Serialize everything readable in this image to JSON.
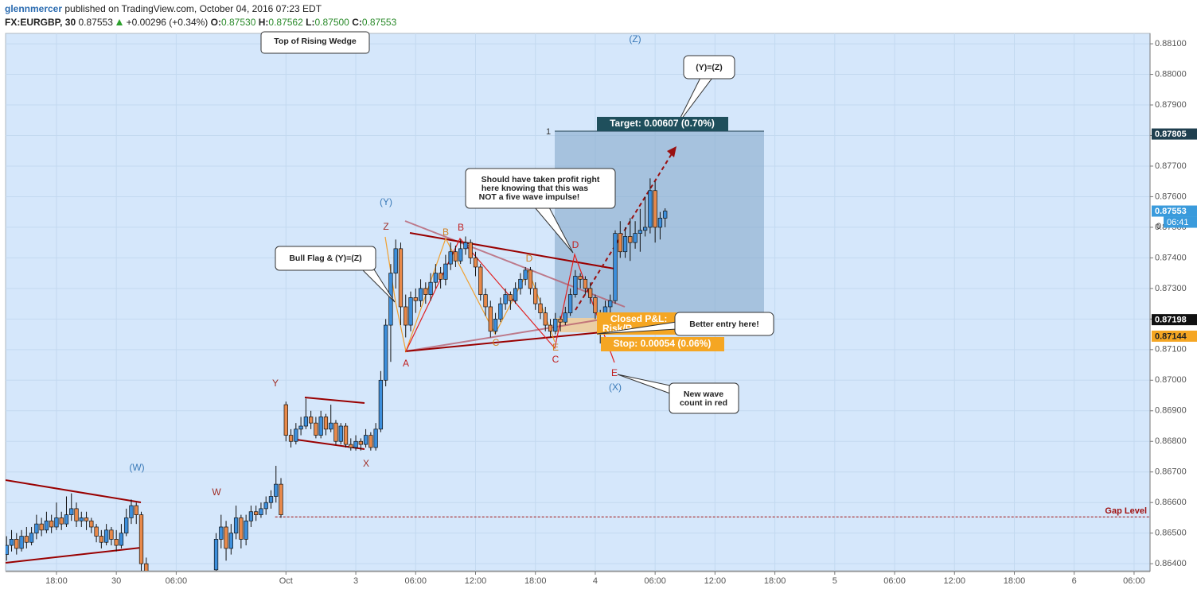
{
  "header": {
    "author": "glennmercer",
    "published": "published on TradingView.com, October 04, 2016 07:23 EDT",
    "symbol": "FX:EURGBP, 30",
    "last": "0.87553",
    "change": "+0.00296 (+0.34%)",
    "o_label": "O:",
    "o": "0.87530",
    "h_label": "H:",
    "h": "0.87562",
    "l_label": "L:",
    "l": "0.87500",
    "c_label": "C:",
    "c": "0.87553"
  },
  "chart_data": {
    "type": "candlestick",
    "ylim": [
      0.86377,
      0.88134
    ],
    "yticks": [
      {
        "value": 0.864,
        "label": "0.86400"
      },
      {
        "value": 0.865,
        "label": "0.86500"
      },
      {
        "value": 0.866,
        "label": "0.86600"
      },
      {
        "value": 0.867,
        "label": "0.86700"
      },
      {
        "value": 0.868,
        "label": "0.86800"
      },
      {
        "value": 0.869,
        "label": "0.86900"
      },
      {
        "value": 0.87,
        "label": "0.87000"
      },
      {
        "value": 0.871,
        "label": "0.87100"
      },
      {
        "value": 0.872,
        "label": "0.87200"
      },
      {
        "value": 0.873,
        "label": "0.87300"
      },
      {
        "value": 0.874,
        "label": "0.87400"
      },
      {
        "value": 0.875,
        "label": "0.87500"
      },
      {
        "value": 0.876,
        "label": "0.87600"
      },
      {
        "value": 0.877,
        "label": "0.87700"
      },
      {
        "value": 0.878,
        "label": "0.87800"
      },
      {
        "value": 0.879,
        "label": "0.87900"
      },
      {
        "value": 0.88,
        "label": "0.88000"
      },
      {
        "value": 0.881,
        "label": "0.88100"
      }
    ],
    "xlim": [
      -22.2,
      207.2
    ],
    "xticks": [
      {
        "value": -12,
        "label": "18:00"
      },
      {
        "value": 0,
        "label": "30"
      },
      {
        "value": 12,
        "label": "06:00"
      },
      {
        "value": 34,
        "label": "Oct"
      },
      {
        "value": 48,
        "label": "3"
      },
      {
        "value": 60,
        "label": "06:00"
      },
      {
        "value": 72,
        "label": "12:00"
      },
      {
        "value": 84,
        "label": "18:00"
      },
      {
        "value": 96,
        "label": "4"
      },
      {
        "value": 108,
        "label": "06:00"
      },
      {
        "value": 120,
        "label": "12:00"
      },
      {
        "value": 132,
        "label": "18:00"
      },
      {
        "value": 144,
        "label": "5"
      },
      {
        "value": 156,
        "label": "06:00"
      },
      {
        "value": 168,
        "label": "12:00"
      },
      {
        "value": 180,
        "label": "18:00"
      },
      {
        "value": 192,
        "label": "6"
      },
      {
        "value": 204,
        "label": "06:00"
      }
    ],
    "grid": true,
    "up_color": "#3d8fdc",
    "down_color": "#e8894a",
    "background": "#d5e7fb",
    "candles": [
      {
        "x": -22,
        "o": 0.8643,
        "h": 0.8649,
        "l": 0.8641,
        "c": 0.8646
      },
      {
        "x": -21,
        "o": 0.8646,
        "h": 0.8651,
        "l": 0.8644,
        "c": 0.8648
      },
      {
        "x": -20,
        "o": 0.8648,
        "h": 0.865,
        "l": 0.8643,
        "c": 0.8645
      },
      {
        "x": -19,
        "o": 0.8645,
        "h": 0.8651,
        "l": 0.8644,
        "c": 0.8649
      },
      {
        "x": -18,
        "o": 0.8649,
        "h": 0.8652,
        "l": 0.8645,
        "c": 0.8647
      },
      {
        "x": -17,
        "o": 0.8647,
        "h": 0.8652,
        "l": 0.8646,
        "c": 0.865
      },
      {
        "x": -16,
        "o": 0.865,
        "h": 0.8656,
        "l": 0.8648,
        "c": 0.8653
      },
      {
        "x": -15,
        "o": 0.8653,
        "h": 0.8655,
        "l": 0.8649,
        "c": 0.8651
      },
      {
        "x": -14,
        "o": 0.8651,
        "h": 0.8657,
        "l": 0.865,
        "c": 0.8654
      },
      {
        "x": -13,
        "o": 0.8654,
        "h": 0.8656,
        "l": 0.865,
        "c": 0.8652
      },
      {
        "x": -12,
        "o": 0.8652,
        "h": 0.866,
        "l": 0.8651,
        "c": 0.8655
      },
      {
        "x": -11,
        "o": 0.8655,
        "h": 0.8657,
        "l": 0.8651,
        "c": 0.8653
      },
      {
        "x": -10,
        "o": 0.8653,
        "h": 0.8662,
        "l": 0.8652,
        "c": 0.8656
      },
      {
        "x": -9,
        "o": 0.8656,
        "h": 0.8663,
        "l": 0.8654,
        "c": 0.8658
      },
      {
        "x": -8,
        "o": 0.8658,
        "h": 0.866,
        "l": 0.8652,
        "c": 0.8654
      },
      {
        "x": -7,
        "o": 0.8654,
        "h": 0.8657,
        "l": 0.8652,
        "c": 0.8655
      },
      {
        "x": -6,
        "o": 0.8655,
        "h": 0.8657,
        "l": 0.8651,
        "c": 0.8654
      },
      {
        "x": -5,
        "o": 0.8654,
        "h": 0.8655,
        "l": 0.865,
        "c": 0.8652
      },
      {
        "x": -4,
        "o": 0.8652,
        "h": 0.8653,
        "l": 0.8647,
        "c": 0.8649
      },
      {
        "x": -3,
        "o": 0.8649,
        "h": 0.8651,
        "l": 0.8645,
        "c": 0.8647
      },
      {
        "x": -2,
        "o": 0.8647,
        "h": 0.8653,
        "l": 0.8646,
        "c": 0.8651
      },
      {
        "x": -1,
        "o": 0.8651,
        "h": 0.8652,
        "l": 0.8646,
        "c": 0.8648
      },
      {
        "x": 0,
        "o": 0.8648,
        "h": 0.8651,
        "l": 0.8644,
        "c": 0.8646
      },
      {
        "x": 1,
        "o": 0.8646,
        "h": 0.8653,
        "l": 0.8645,
        "c": 0.865
      },
      {
        "x": 2,
        "o": 0.865,
        "h": 0.8658,
        "l": 0.8649,
        "c": 0.8655
      },
      {
        "x": 3,
        "o": 0.8655,
        "h": 0.8661,
        "l": 0.8653,
        "c": 0.8659
      },
      {
        "x": 4,
        "o": 0.8659,
        "h": 0.866,
        "l": 0.8653,
        "c": 0.8656
      },
      {
        "x": 5,
        "o": 0.8656,
        "h": 0.8657,
        "l": 0.8636,
        "c": 0.864
      },
      {
        "x": 6,
        "o": 0.864,
        "h": 0.8642,
        "l": 0.863,
        "c": 0.8633
      },
      {
        "x": 20,
        "o": 0.8638,
        "h": 0.865,
        "l": 0.8636,
        "c": 0.8648
      },
      {
        "x": 21,
        "o": 0.8648,
        "h": 0.8656,
        "l": 0.8645,
        "c": 0.8652
      },
      {
        "x": 22,
        "o": 0.8652,
        "h": 0.8654,
        "l": 0.8641,
        "c": 0.8645
      },
      {
        "x": 23,
        "o": 0.8645,
        "h": 0.8653,
        "l": 0.8643,
        "c": 0.865
      },
      {
        "x": 24,
        "o": 0.865,
        "h": 0.8659,
        "l": 0.8648,
        "c": 0.8655
      },
      {
        "x": 25,
        "o": 0.8655,
        "h": 0.8656,
        "l": 0.8645,
        "c": 0.8648
      },
      {
        "x": 26,
        "o": 0.8648,
        "h": 0.8656,
        "l": 0.8646,
        "c": 0.8654
      },
      {
        "x": 27,
        "o": 0.8654,
        "h": 0.8659,
        "l": 0.8652,
        "c": 0.8657
      },
      {
        "x": 28,
        "o": 0.8657,
        "h": 0.8659,
        "l": 0.8654,
        "c": 0.8656
      },
      {
        "x": 29,
        "o": 0.8656,
        "h": 0.866,
        "l": 0.8655,
        "c": 0.8658
      },
      {
        "x": 30,
        "o": 0.8658,
        "h": 0.8662,
        "l": 0.8656,
        "c": 0.866
      },
      {
        "x": 31,
        "o": 0.866,
        "h": 0.8664,
        "l": 0.8658,
        "c": 0.8662
      },
      {
        "x": 32,
        "o": 0.8662,
        "h": 0.8672,
        "l": 0.866,
        "c": 0.8666
      },
      {
        "x": 33,
        "o": 0.8666,
        "h": 0.8668,
        "l": 0.8655,
        "c": 0.8656
      },
      {
        "x": 34,
        "o": 0.8692,
        "h": 0.8693,
        "l": 0.868,
        "c": 0.8682
      },
      {
        "x": 35,
        "o": 0.8682,
        "h": 0.8684,
        "l": 0.8678,
        "c": 0.868
      },
      {
        "x": 36,
        "o": 0.868,
        "h": 0.8686,
        "l": 0.8679,
        "c": 0.8684
      },
      {
        "x": 37,
        "o": 0.8684,
        "h": 0.8688,
        "l": 0.8682,
        "c": 0.8685
      },
      {
        "x": 38,
        "o": 0.8685,
        "h": 0.8694,
        "l": 0.8684,
        "c": 0.8688
      },
      {
        "x": 39,
        "o": 0.8688,
        "h": 0.869,
        "l": 0.8684,
        "c": 0.8686
      },
      {
        "x": 40,
        "o": 0.8686,
        "h": 0.8688,
        "l": 0.8681,
        "c": 0.8682
      },
      {
        "x": 41,
        "o": 0.8682,
        "h": 0.869,
        "l": 0.8681,
        "c": 0.8688
      },
      {
        "x": 42,
        "o": 0.8688,
        "h": 0.8689,
        "l": 0.8682,
        "c": 0.8684
      },
      {
        "x": 43,
        "o": 0.8684,
        "h": 0.8692,
        "l": 0.8683,
        "c": 0.8686
      },
      {
        "x": 44,
        "o": 0.8686,
        "h": 0.8687,
        "l": 0.8679,
        "c": 0.868
      },
      {
        "x": 45,
        "o": 0.868,
        "h": 0.8686,
        "l": 0.8679,
        "c": 0.8685
      },
      {
        "x": 46,
        "o": 0.8685,
        "h": 0.8686,
        "l": 0.8678,
        "c": 0.8679
      },
      {
        "x": 47,
        "o": 0.8679,
        "h": 0.8681,
        "l": 0.8677,
        "c": 0.8678
      },
      {
        "x": 48,
        "o": 0.8678,
        "h": 0.8682,
        "l": 0.8677,
        "c": 0.868
      },
      {
        "x": 49,
        "o": 0.868,
        "h": 0.8681,
        "l": 0.8677,
        "c": 0.8679
      },
      {
        "x": 50,
        "o": 0.8679,
        "h": 0.8684,
        "l": 0.8678,
        "c": 0.8682
      },
      {
        "x": 51,
        "o": 0.8682,
        "h": 0.8683,
        "l": 0.8677,
        "c": 0.8678
      },
      {
        "x": 52,
        "o": 0.8678,
        "h": 0.8686,
        "l": 0.8677,
        "c": 0.8684
      },
      {
        "x": 53,
        "o": 0.8684,
        "h": 0.8703,
        "l": 0.8683,
        "c": 0.87
      },
      {
        "x": 54,
        "o": 0.87,
        "h": 0.872,
        "l": 0.8698,
        "c": 0.8718
      },
      {
        "x": 55,
        "o": 0.8718,
        "h": 0.8738,
        "l": 0.8706,
        "c": 0.8735
      },
      {
        "x": 56,
        "o": 0.8735,
        "h": 0.8746,
        "l": 0.873,
        "c": 0.8743
      },
      {
        "x": 57,
        "o": 0.8743,
        "h": 0.8745,
        "l": 0.8718,
        "c": 0.8724
      },
      {
        "x": 58,
        "o": 0.8724,
        "h": 0.8728,
        "l": 0.8714,
        "c": 0.8718
      },
      {
        "x": 59,
        "o": 0.8718,
        "h": 0.8729,
        "l": 0.8716,
        "c": 0.8727
      },
      {
        "x": 60,
        "o": 0.8727,
        "h": 0.873,
        "l": 0.8722,
        "c": 0.8726
      },
      {
        "x": 61,
        "o": 0.8726,
        "h": 0.8733,
        "l": 0.8724,
        "c": 0.873
      },
      {
        "x": 62,
        "o": 0.873,
        "h": 0.8732,
        "l": 0.8725,
        "c": 0.8728
      },
      {
        "x": 63,
        "o": 0.8728,
        "h": 0.8735,
        "l": 0.8726,
        "c": 0.8732
      },
      {
        "x": 64,
        "o": 0.8732,
        "h": 0.8738,
        "l": 0.873,
        "c": 0.8735
      },
      {
        "x": 65,
        "o": 0.8735,
        "h": 0.8737,
        "l": 0.873,
        "c": 0.8733
      },
      {
        "x": 66,
        "o": 0.8733,
        "h": 0.8741,
        "l": 0.8731,
        "c": 0.8738
      },
      {
        "x": 67,
        "o": 0.8738,
        "h": 0.8745,
        "l": 0.8736,
        "c": 0.8742
      },
      {
        "x": 68,
        "o": 0.8742,
        "h": 0.8744,
        "l": 0.8737,
        "c": 0.8739
      },
      {
        "x": 69,
        "o": 0.8739,
        "h": 0.8746,
        "l": 0.8738,
        "c": 0.8743
      },
      {
        "x": 70,
        "o": 0.8743,
        "h": 0.8747,
        "l": 0.8741,
        "c": 0.8745
      },
      {
        "x": 71,
        "o": 0.8745,
        "h": 0.8746,
        "l": 0.8738,
        "c": 0.874
      },
      {
        "x": 72,
        "o": 0.874,
        "h": 0.8742,
        "l": 0.8734,
        "c": 0.8737
      },
      {
        "x": 73,
        "o": 0.8737,
        "h": 0.8738,
        "l": 0.8726,
        "c": 0.8728
      },
      {
        "x": 74,
        "o": 0.8728,
        "h": 0.873,
        "l": 0.8721,
        "c": 0.8724
      },
      {
        "x": 75,
        "o": 0.8724,
        "h": 0.8726,
        "l": 0.8714,
        "c": 0.8716
      },
      {
        "x": 76,
        "o": 0.8716,
        "h": 0.8722,
        "l": 0.8715,
        "c": 0.872
      },
      {
        "x": 77,
        "o": 0.872,
        "h": 0.8727,
        "l": 0.8719,
        "c": 0.8725
      },
      {
        "x": 78,
        "o": 0.8725,
        "h": 0.873,
        "l": 0.8723,
        "c": 0.8728
      },
      {
        "x": 79,
        "o": 0.8728,
        "h": 0.8729,
        "l": 0.8723,
        "c": 0.8726
      },
      {
        "x": 80,
        "o": 0.8726,
        "h": 0.8732,
        "l": 0.8725,
        "c": 0.873
      },
      {
        "x": 81,
        "o": 0.873,
        "h": 0.8735,
        "l": 0.8728,
        "c": 0.8733
      },
      {
        "x": 82,
        "o": 0.8733,
        "h": 0.8737,
        "l": 0.8731,
        "c": 0.8736
      },
      {
        "x": 83,
        "o": 0.8736,
        "h": 0.8737,
        "l": 0.8728,
        "c": 0.873
      },
      {
        "x": 84,
        "o": 0.873,
        "h": 0.8732,
        "l": 0.8723,
        "c": 0.8725
      },
      {
        "x": 85,
        "o": 0.8725,
        "h": 0.8727,
        "l": 0.872,
        "c": 0.8722
      },
      {
        "x": 86,
        "o": 0.8722,
        "h": 0.8724,
        "l": 0.8716,
        "c": 0.8718
      },
      {
        "x": 87,
        "o": 0.8718,
        "h": 0.872,
        "l": 0.8714,
        "c": 0.8716
      },
      {
        "x": 88,
        "o": 0.8716,
        "h": 0.8722,
        "l": 0.8715,
        "c": 0.872
      },
      {
        "x": 89,
        "o": 0.872,
        "h": 0.8721,
        "l": 0.8716,
        "c": 0.8719
      },
      {
        "x": 90,
        "o": 0.8719,
        "h": 0.8724,
        "l": 0.8718,
        "c": 0.8722
      },
      {
        "x": 91,
        "o": 0.8722,
        "h": 0.873,
        "l": 0.8721,
        "c": 0.8728
      },
      {
        "x": 92,
        "o": 0.8728,
        "h": 0.8736,
        "l": 0.8727,
        "c": 0.8734
      },
      {
        "x": 93,
        "o": 0.8734,
        "h": 0.8735,
        "l": 0.873,
        "c": 0.8733
      },
      {
        "x": 94,
        "o": 0.8733,
        "h": 0.8734,
        "l": 0.8728,
        "c": 0.873
      },
      {
        "x": 95,
        "o": 0.873,
        "h": 0.8732,
        "l": 0.8725,
        "c": 0.8727
      },
      {
        "x": 96,
        "o": 0.8727,
        "h": 0.8728,
        "l": 0.872,
        "c": 0.8722
      },
      {
        "x": 97,
        "o": 0.8722,
        "h": 0.8723,
        "l": 0.8712,
        "c": 0.8718
      },
      {
        "x": 98,
        "o": 0.8718,
        "h": 0.8726,
        "l": 0.8717,
        "c": 0.8724
      },
      {
        "x": 99,
        "o": 0.8724,
        "h": 0.8728,
        "l": 0.8722,
        "c": 0.8726
      },
      {
        "x": 100,
        "o": 0.8726,
        "h": 0.8749,
        "l": 0.8725,
        "c": 0.8748
      },
      {
        "x": 101,
        "o": 0.8748,
        "h": 0.8752,
        "l": 0.874,
        "c": 0.8742
      },
      {
        "x": 102,
        "o": 0.8742,
        "h": 0.875,
        "l": 0.874,
        "c": 0.8747
      },
      {
        "x": 103,
        "o": 0.8747,
        "h": 0.8753,
        "l": 0.8739,
        "c": 0.8745
      },
      {
        "x": 104,
        "o": 0.8745,
        "h": 0.8752,
        "l": 0.8743,
        "c": 0.8748
      },
      {
        "x": 105,
        "o": 0.8748,
        "h": 0.8756,
        "l": 0.8742,
        "c": 0.8749
      },
      {
        "x": 106,
        "o": 0.8749,
        "h": 0.876,
        "l": 0.8747,
        "c": 0.875
      },
      {
        "x": 107,
        "o": 0.875,
        "h": 0.8766,
        "l": 0.8748,
        "c": 0.8762
      },
      {
        "x": 108,
        "o": 0.8762,
        "h": 0.8765,
        "l": 0.8745,
        "c": 0.875
      },
      {
        "x": 109,
        "o": 0.875,
        "h": 0.8755,
        "l": 0.8746,
        "c": 0.8753
      },
      {
        "x": 110,
        "o": 0.8753,
        "h": 0.87562,
        "l": 0.875,
        "c": 0.87553
      }
    ],
    "price_tags": [
      {
        "value": 0.87805,
        "color": "#1f3f4f",
        "text_color": "#ffffff"
      },
      {
        "value": 0.87553,
        "color": "#3a9bdc",
        "text_color": "#ffffff"
      },
      {
        "value": 0.87198,
        "color": "#111111",
        "text_color": "#ffffff"
      },
      {
        "value": 0.87144,
        "color": "#f5a623",
        "text_color": "#222222"
      }
    ],
    "countdown": "06:41",
    "gap_level": {
      "label": "Gap Level",
      "value": 0.86553
    },
    "annotations": {
      "top_wedge": "Top of Rising Wedge",
      "yz": "(Y)=(Z)",
      "profit": [
        "Should have taken profit right",
        "here knowing that this was",
        "NOT a five wave impulse!"
      ],
      "bull_flag": "Bull Flag & (Y)=(Z)",
      "better_entry": "Better entry here!",
      "new_count": [
        "New wave",
        "count in red"
      ],
      "target": "Target: 0.00607 (0.70%)",
      "closed": "Closed P&L:",
      "risk": "Risk/R",
      "stop": "Stop: 0.00054 (0.06%)"
    },
    "wave_labels": [
      "(Z)",
      "(Y)",
      "(W)",
      "(X)",
      "Z",
      "Y",
      "X",
      "W",
      "A",
      "B",
      "B",
      "C",
      "C",
      "D",
      "D",
      "E",
      "E",
      "1",
      "0"
    ]
  }
}
